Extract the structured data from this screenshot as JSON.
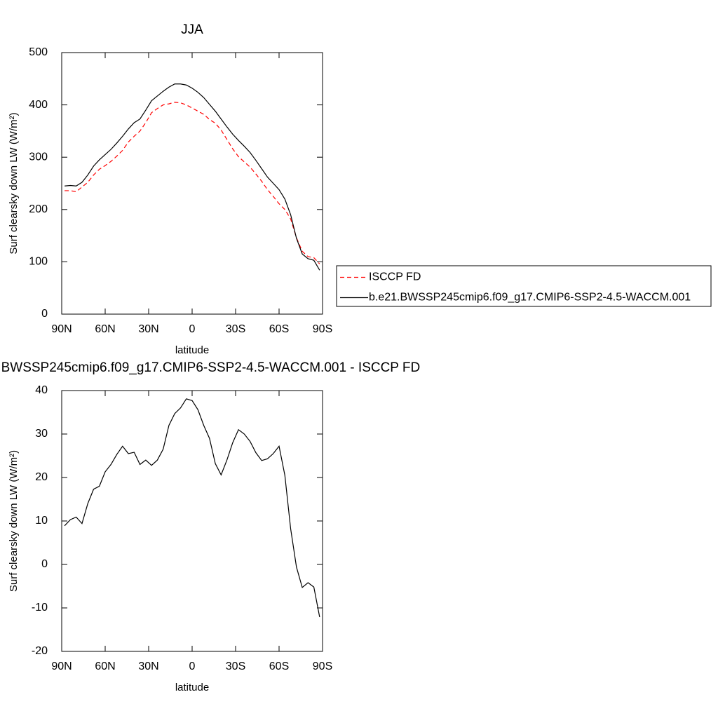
{
  "chart_data": [
    {
      "type": "line",
      "title": "JJA",
      "x_label": "latitude",
      "y_label": "Surf clearsky down LW (W/m²)",
      "x": [
        88,
        84,
        80,
        76,
        72,
        68,
        64,
        60,
        56,
        52,
        48,
        44,
        40,
        36,
        32,
        28,
        24,
        20,
        16,
        12,
        8,
        4,
        0,
        -4,
        -8,
        -12,
        -16,
        -20,
        -24,
        -28,
        -32,
        -36,
        -40,
        -44,
        -48,
        -52,
        -56,
        -60,
        -64,
        -68,
        -72,
        -76,
        -80,
        -84,
        -88
      ],
      "series": [
        {
          "name": "ISCCP FD",
          "color": "#ff0000",
          "line_style": "dashed",
          "values": [
            236,
            236,
            234,
            243,
            252,
            266,
            277,
            284,
            292,
            302,
            313,
            329,
            340,
            350,
            366,
            385,
            393,
            400,
            402,
            405,
            404,
            400,
            394,
            388,
            382,
            372,
            365,
            352,
            334,
            316,
            301,
            291,
            281,
            268,
            254,
            238,
            225,
            211,
            200,
            182,
            146,
            120,
            110,
            108,
            96
          ]
        },
        {
          "name": "b.e21.BWSSP245cmip6.f09_g17.CMIP6-SSP2-4.5-WACCM.001",
          "color": "#000000",
          "line_style": "solid",
          "values": [
            245,
            246,
            245,
            252,
            266,
            283,
            295,
            305,
            315,
            327,
            340,
            354,
            366,
            373,
            390,
            408,
            417,
            426,
            434,
            440,
            440,
            438,
            432,
            424,
            414,
            401,
            388,
            373,
            358,
            344,
            332,
            321,
            309,
            294,
            278,
            262,
            250,
            238,
            220,
            190,
            145,
            115,
            106,
            103,
            84
          ]
        }
      ],
      "xlim": [
        90,
        -90
      ],
      "xticks": [
        {
          "value": 90,
          "label": "90N"
        },
        {
          "value": 60,
          "label": "60N"
        },
        {
          "value": 30,
          "label": "30N"
        },
        0,
        {
          "value": -30,
          "label": "30S"
        },
        {
          "value": -60,
          "label": "60S"
        },
        {
          "value": -90,
          "label": "90S"
        }
      ],
      "ylim": [
        0,
        500
      ],
      "yticks": [
        0,
        100,
        200,
        300,
        400,
        500
      ],
      "legend": "right"
    },
    {
      "type": "line",
      "title": "b.e21.BWSSP245cmip6.f09_g17.CMIP6-SSP2-4.5-WACCM.001 - ISCCP FD",
      "x_label": "latitude",
      "y_label": "Surf clearsky down LW (W/m²)",
      "x": [
        88,
        84,
        80,
        76,
        72,
        68,
        64,
        60,
        56,
        52,
        48,
        44,
        40,
        36,
        32,
        28,
        24,
        20,
        16,
        12,
        8,
        4,
        0,
        -4,
        -8,
        -12,
        -16,
        -20,
        -24,
        -28,
        -32,
        -36,
        -40,
        -44,
        -48,
        -52,
        -56,
        -60,
        -64,
        -68,
        -72,
        -76,
        -80,
        -84,
        -88
      ],
      "values": [
        8.9,
        10.3,
        10.9,
        9.4,
        14,
        17.3,
        18,
        21.3,
        23,
        25.3,
        27.2,
        25.5,
        25.8,
        23,
        24,
        22.8,
        24,
        26.5,
        32,
        34.7,
        36,
        38.1,
        37.7,
        35.6,
        32,
        29,
        23.2,
        20.6,
        24,
        28,
        31,
        30,
        28.3,
        25.7,
        23.9,
        24.3,
        25.5,
        27.2,
        20.5,
        8.2,
        -0.6,
        -5.3,
        -4.2,
        -5.2,
        -12.1
      ],
      "color": "#000000",
      "xlim": [
        90,
        -90
      ],
      "xticks": [
        {
          "value": 90,
          "label": "90N"
        },
        {
          "value": 60,
          "label": "60N"
        },
        {
          "value": 30,
          "label": "30N"
        },
        0,
        {
          "value": -30,
          "label": "30S"
        },
        {
          "value": -60,
          "label": "60S"
        },
        {
          "value": -90,
          "label": "90S"
        }
      ],
      "ylim": [
        -20,
        40
      ],
      "yticks": [
        -20,
        -10,
        0,
        10,
        20,
        30,
        40
      ]
    }
  ]
}
